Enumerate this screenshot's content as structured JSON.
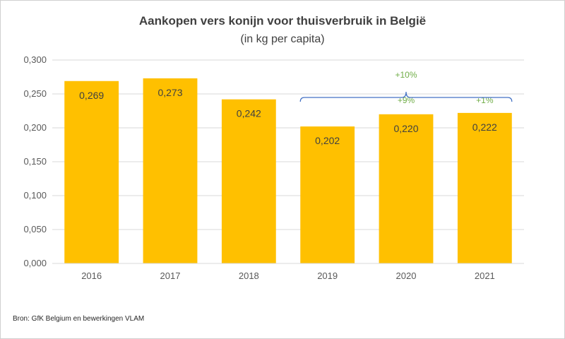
{
  "chart_data": {
    "type": "bar",
    "title": "Aankopen  vers konijn  voor thuisverbruik in België",
    "subtitle": "(in kg per capita)",
    "categories": [
      "2016",
      "2017",
      "2018",
      "2019",
      "2020",
      "2021"
    ],
    "values": [
      0.269,
      0.273,
      0.242,
      0.202,
      0.22,
      0.222
    ],
    "value_labels": [
      "0,269",
      "0,273",
      "0,242",
      "0,202",
      "0,220",
      "0,222"
    ],
    "ylim": [
      0,
      0.3
    ],
    "yticks": [
      0,
      0.05,
      0.1,
      0.15,
      0.2,
      0.25,
      0.3
    ],
    "ytick_labels": [
      "0,000",
      "0,050",
      "0,100",
      "0,150",
      "0,200",
      "0,250",
      "0,300"
    ],
    "grid": true,
    "bar_color": "#ffc000",
    "annotations": [
      {
        "text": "+9%",
        "category": "2020"
      },
      {
        "text": "+1%",
        "category": "2021"
      },
      {
        "text": "+10%",
        "from": "2019",
        "to": "2021",
        "style": "bracket"
      }
    ],
    "annotation_color": "#70ad47",
    "bracket_color": "#4472c4"
  },
  "source": "Bron: GfK Belgium en bewerkingen VLAM"
}
